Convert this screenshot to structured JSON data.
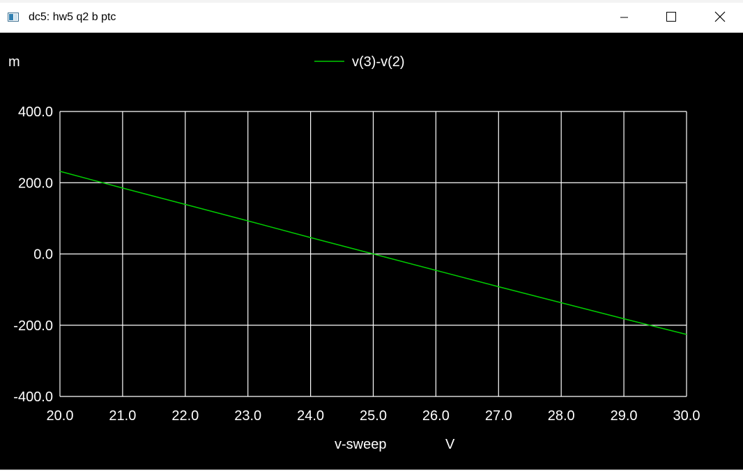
{
  "window": {
    "title": "dc5: hw5 q2 b ptc",
    "minimize_icon": "minimize-icon",
    "maximize_icon": "maximize-icon",
    "close_icon": "close-icon",
    "app_icon": "ngspice-plot-window-icon"
  },
  "colors": {
    "background": "#000000",
    "grid": "#ffffff",
    "trace": "#00cc00",
    "text": "#ffffff"
  },
  "chart_data": {
    "type": "line",
    "title": "",
    "y_unit_prefix": "m",
    "xlabel": "v-sweep",
    "xunit": "V",
    "xlim": [
      20.0,
      30.0
    ],
    "ylim": [
      -400.0,
      400.0
    ],
    "x_ticks": [
      "20.0",
      "21.0",
      "22.0",
      "23.0",
      "24.0",
      "25.0",
      "26.0",
      "27.0",
      "28.0",
      "29.0",
      "30.0"
    ],
    "y_ticks": [
      "400.0",
      "200.0",
      "0.0",
      "-200.0",
      "-400.0"
    ],
    "grid": true,
    "legend_position": "top-center",
    "series": [
      {
        "name": "v(3)-v(2)",
        "x": [
          20.0,
          21.0,
          22.0,
          23.0,
          24.0,
          25.0,
          26.0,
          27.0,
          28.0,
          29.0,
          30.0
        ],
        "y": [
          232,
          185,
          139,
          93,
          46,
          0,
          -46,
          -92,
          -137,
          -182,
          -226
        ]
      }
    ]
  }
}
